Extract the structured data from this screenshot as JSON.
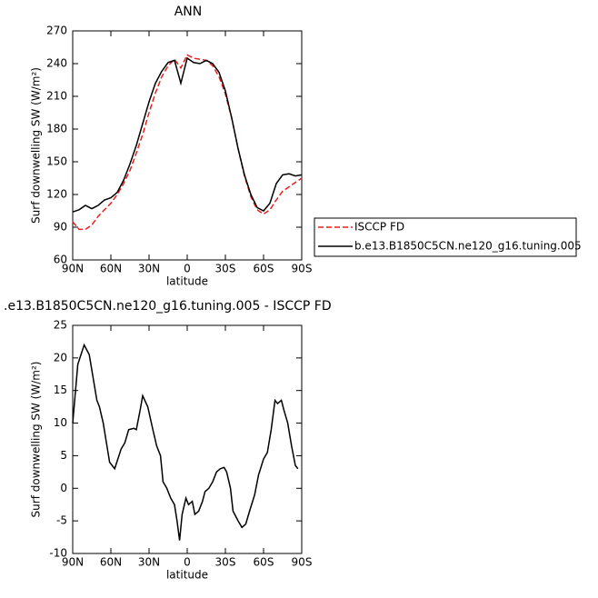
{
  "chart_data": [
    {
      "type": "line",
      "title": "ANN",
      "x_label": "latitude",
      "y_label": "Surf downwelling SW (W/m²)",
      "x": [
        90,
        85,
        80,
        75,
        70,
        65,
        60,
        55,
        50,
        45,
        40,
        35,
        30,
        25,
        20,
        15,
        10,
        5,
        0,
        -5,
        -10,
        -15,
        -20,
        -25,
        -30,
        -35,
        -40,
        -45,
        -50,
        -55,
        -60,
        -65,
        -70,
        -75,
        -80,
        -85,
        -90
      ],
      "series": [
        {
          "name": "ISCCP FD",
          "color": "#e8201c",
          "line_style": "dashed",
          "values": [
            95,
            88,
            88,
            92,
            100,
            106,
            112,
            120,
            130,
            142,
            158,
            175,
            195,
            213,
            228,
            238,
            244,
            236,
            248,
            245,
            244,
            243,
            238,
            228,
            212,
            190,
            162,
            137,
            118,
            106,
            102,
            106,
            115,
            123,
            127,
            131,
            135
          ]
        },
        {
          "name": "b.e13.B1850C5CN.ne120_g16.tuning.005",
          "color": "#000000",
          "line_style": "solid",
          "values": [
            104,
            106,
            110,
            107,
            110,
            115,
            117,
            122,
            133,
            148,
            165,
            185,
            205,
            222,
            233,
            241,
            243,
            222,
            245,
            241,
            240,
            243,
            240,
            232,
            215,
            190,
            162,
            138,
            120,
            108,
            105,
            112,
            130,
            138,
            139,
            137,
            138
          ]
        }
      ],
      "xlim": [
        90,
        -90
      ],
      "xticks": [
        {
          "value": 90,
          "label": "90N"
        },
        {
          "value": 60,
          "label": "60N"
        },
        {
          "value": 30,
          "label": "30N"
        },
        0,
        {
          "value": -30,
          "label": "30S"
        },
        {
          "value": -60,
          "label": "60S"
        },
        {
          "value": -90,
          "label": "90S"
        }
      ],
      "ylim": [
        60,
        270
      ],
      "yticks": [
        60,
        90,
        120,
        150,
        180,
        210,
        240,
        270
      ],
      "legend": "right"
    },
    {
      "type": "line",
      "title": ".e13.B1850C5CN.ne120_g16.tuning.005 - ISCCP FD",
      "x_label": "latitude",
      "y_label": "Surf downwelling SW (W/m²)",
      "x": [
        90,
        86,
        81,
        77,
        71,
        69,
        66,
        61,
        57,
        52,
        49,
        46,
        42,
        40,
        37,
        35,
        31,
        27,
        24,
        21,
        19,
        16,
        13,
        10,
        8,
        6,
        4,
        1,
        -1,
        -4,
        -6,
        -9,
        -12,
        -14,
        -17,
        -20,
        -23,
        -26,
        -29,
        -31,
        -34,
        -36,
        -40,
        -43,
        -46,
        -49,
        -53,
        -56,
        -60,
        -63,
        -66,
        -69,
        -71,
        -74,
        -76,
        -79,
        -82,
        -85,
        -87
      ],
      "color": "#000000",
      "values": [
        10,
        19,
        22,
        20.5,
        13.5,
        12.5,
        10,
        4,
        3,
        6,
        7,
        9,
        9.2,
        9,
        12,
        14.2,
        12.5,
        9,
        6.5,
        5,
        1,
        0,
        -1.5,
        -2.5,
        -5,
        -8,
        -4,
        -1.5,
        -2.5,
        -2,
        -4,
        -3.5,
        -2,
        -0.5,
        0,
        1,
        2.5,
        3,
        3.2,
        2.5,
        0,
        -3.5,
        -5,
        -6,
        -5.5,
        -3.5,
        -1,
        2,
        4.5,
        5.5,
        9,
        13.5,
        13,
        13.5,
        12,
        10,
        6.5,
        3.5,
        3
      ],
      "xlim": [
        90,
        -90
      ],
      "xticks": [
        {
          "value": 90,
          "label": "90N"
        },
        {
          "value": 60,
          "label": "60N"
        },
        {
          "value": 30,
          "label": "30N"
        },
        0,
        {
          "value": -30,
          "label": "30S"
        },
        {
          "value": -60,
          "label": "60S"
        },
        {
          "value": -90,
          "label": "90S"
        }
      ],
      "ylim": [
        -10,
        25
      ],
      "yticks": [
        -10,
        -5,
        0,
        5,
        10,
        15,
        20,
        25
      ]
    }
  ]
}
